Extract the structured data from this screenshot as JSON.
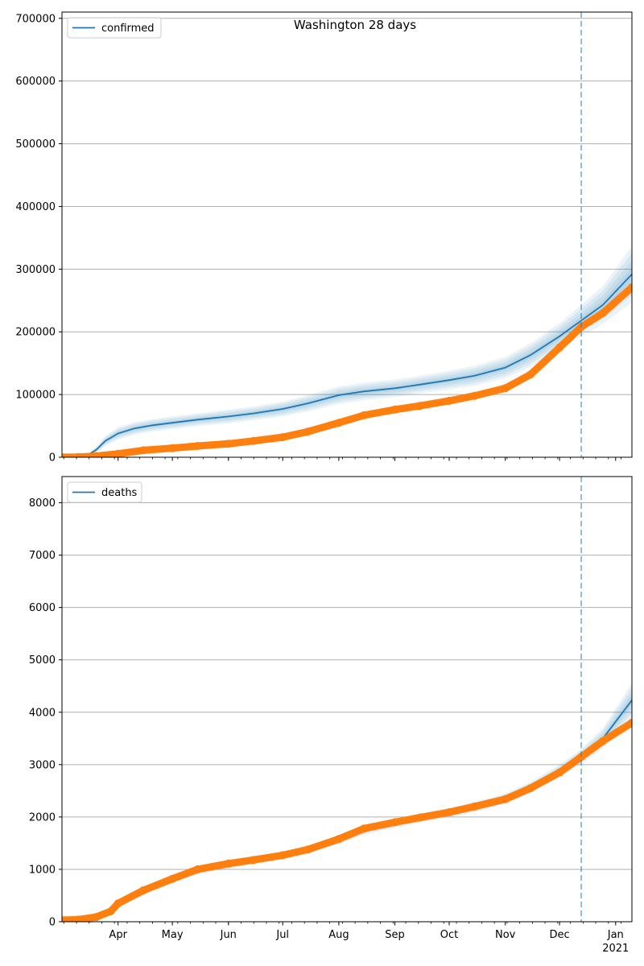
{
  "chart_data": [
    {
      "type": "line",
      "title": "Washington 28 days",
      "xlabel": "",
      "ylabel": "",
      "x_range": [
        "2020-03-01",
        "2021-01-10"
      ],
      "x_tick_labels": [
        {
          "date": "2020-04-01",
          "label": "Apr"
        },
        {
          "date": "2020-05-01",
          "label": "May"
        },
        {
          "date": "2020-06-01",
          "label": "Jun"
        },
        {
          "date": "2020-07-01",
          "label": "Jul"
        },
        {
          "date": "2020-08-01",
          "label": "Aug"
        },
        {
          "date": "2020-09-01",
          "label": "Sep"
        },
        {
          "date": "2020-10-01",
          "label": "Oct"
        },
        {
          "date": "2020-11-01",
          "label": "Nov"
        },
        {
          "date": "2020-12-01",
          "label": "Dec"
        },
        {
          "date": "2021-01-01",
          "label": "Jan",
          "sublabel": "2021"
        }
      ],
      "ylim": [
        0,
        710000
      ],
      "y_ticks": [
        0,
        100000,
        200000,
        300000,
        400000,
        500000,
        600000,
        700000
      ],
      "grid": "horizontal",
      "legend": {
        "position": "top-left",
        "entries": [
          "confirmed"
        ]
      },
      "vertical_marker_date": "2020-12-13",
      "series": [
        {
          "name": "confirmed",
          "kind": "model",
          "color": "#1f77b4",
          "x": [
            "2020-03-01",
            "2020-03-10",
            "2020-03-15",
            "2020-03-20",
            "2020-03-25",
            "2020-04-01",
            "2020-04-10",
            "2020-04-20",
            "2020-05-01",
            "2020-05-15",
            "2020-06-01",
            "2020-06-15",
            "2020-07-01",
            "2020-07-15",
            "2020-08-01",
            "2020-08-15",
            "2020-09-01",
            "2020-09-15",
            "2020-10-01",
            "2020-10-15",
            "2020-11-01",
            "2020-11-15",
            "2020-12-01",
            "2020-12-13",
            "2020-12-25",
            "2021-01-10"
          ],
          "values": [
            0,
            0,
            3000,
            12000,
            26000,
            38000,
            46000,
            51000,
            55000,
            60000,
            65000,
            70000,
            77000,
            86000,
            99000,
            105000,
            110000,
            116000,
            123000,
            130000,
            143000,
            163000,
            193000,
            218000,
            243000,
            292000
          ],
          "band_half_width": [
            0,
            0,
            2000,
            5000,
            8000,
            10000,
            10000,
            10000,
            10000,
            10000,
            11000,
            11000,
            12000,
            13000,
            14000,
            14000,
            14000,
            14000,
            15000,
            16000,
            17000,
            19000,
            21000,
            25000,
            30000,
            45000
          ]
        },
        {
          "name": "",
          "kind": "observed",
          "color": "#ff7f0e",
          "x": [
            "2020-03-01",
            "2020-03-10",
            "2020-03-20",
            "2020-04-01",
            "2020-04-15",
            "2020-05-01",
            "2020-05-15",
            "2020-06-01",
            "2020-06-15",
            "2020-07-01",
            "2020-07-15",
            "2020-08-01",
            "2020-08-15",
            "2020-09-01",
            "2020-09-15",
            "2020-10-01",
            "2020-10-15",
            "2020-11-01",
            "2020-11-15",
            "2020-12-01",
            "2020-12-13",
            "2020-12-25",
            "2021-01-10"
          ],
          "values": [
            0,
            300,
            1800,
            5500,
            11000,
            14500,
            18000,
            21500,
            26000,
            32000,
            41000,
            55000,
            67000,
            76000,
            82000,
            90000,
            98000,
            110000,
            132000,
            175000,
            208000,
            230000,
            271000
          ]
        }
      ]
    },
    {
      "type": "line",
      "title": "",
      "xlabel": "",
      "ylabel": "",
      "x_range": [
        "2020-03-01",
        "2021-01-10"
      ],
      "x_tick_labels": [
        {
          "date": "2020-04-01",
          "label": "Apr"
        },
        {
          "date": "2020-05-01",
          "label": "May"
        },
        {
          "date": "2020-06-01",
          "label": "Jun"
        },
        {
          "date": "2020-07-01",
          "label": "Jul"
        },
        {
          "date": "2020-08-01",
          "label": "Aug"
        },
        {
          "date": "2020-09-01",
          "label": "Sep"
        },
        {
          "date": "2020-10-01",
          "label": "Oct"
        },
        {
          "date": "2020-11-01",
          "label": "Nov"
        },
        {
          "date": "2020-12-01",
          "label": "Dec"
        },
        {
          "date": "2021-01-01",
          "label": "Jan",
          "sublabel": "2021"
        }
      ],
      "ylim": [
        0,
        8500
      ],
      "y_ticks": [
        0,
        1000,
        2000,
        3000,
        4000,
        5000,
        6000,
        7000,
        8000
      ],
      "grid": "horizontal",
      "legend": {
        "position": "top-left",
        "entries": [
          "deaths"
        ]
      },
      "vertical_marker_date": "2020-12-13",
      "series": [
        {
          "name": "deaths",
          "kind": "model",
          "color": "#1f77b4",
          "x": [
            "2020-03-01",
            "2020-03-15",
            "2020-03-25",
            "2020-04-01",
            "2020-04-15",
            "2020-05-01",
            "2020-05-15",
            "2020-06-01",
            "2020-06-15",
            "2020-07-01",
            "2020-07-15",
            "2020-08-01",
            "2020-08-15",
            "2020-09-01",
            "2020-09-15",
            "2020-10-01",
            "2020-10-15",
            "2020-11-01",
            "2020-11-15",
            "2020-12-01",
            "2020-12-13",
            "2020-12-25",
            "2021-01-10"
          ],
          "values": [
            0,
            30,
            140,
            330,
            560,
            800,
            960,
            1080,
            1170,
            1260,
            1380,
            1560,
            1750,
            1880,
            1980,
            2080,
            2190,
            2350,
            2560,
            2880,
            3150,
            3500,
            4230
          ],
          "band_half_width": [
            0,
            10,
            40,
            60,
            60,
            60,
            60,
            70,
            70,
            70,
            80,
            80,
            90,
            90,
            90,
            90,
            100,
            100,
            110,
            120,
            150,
            200,
            330
          ]
        },
        {
          "name": "",
          "kind": "observed",
          "color": "#ff7f0e",
          "x": [
            "2020-03-01",
            "2020-03-10",
            "2020-03-20",
            "2020-03-28",
            "2020-04-01",
            "2020-04-15",
            "2020-05-01",
            "2020-05-15",
            "2020-06-01",
            "2020-06-15",
            "2020-07-01",
            "2020-07-15",
            "2020-08-01",
            "2020-08-15",
            "2020-09-01",
            "2020-09-15",
            "2020-10-01",
            "2020-10-15",
            "2020-11-01",
            "2020-11-15",
            "2020-12-01",
            "2020-12-13",
            "2020-12-25",
            "2021-01-10"
          ],
          "values": [
            30,
            40,
            90,
            200,
            350,
            600,
            820,
            1000,
            1110,
            1180,
            1270,
            1380,
            1580,
            1780,
            1900,
            1990,
            2090,
            2200,
            2340,
            2550,
            2850,
            3150,
            3450,
            3800
          ]
        }
      ]
    }
  ]
}
